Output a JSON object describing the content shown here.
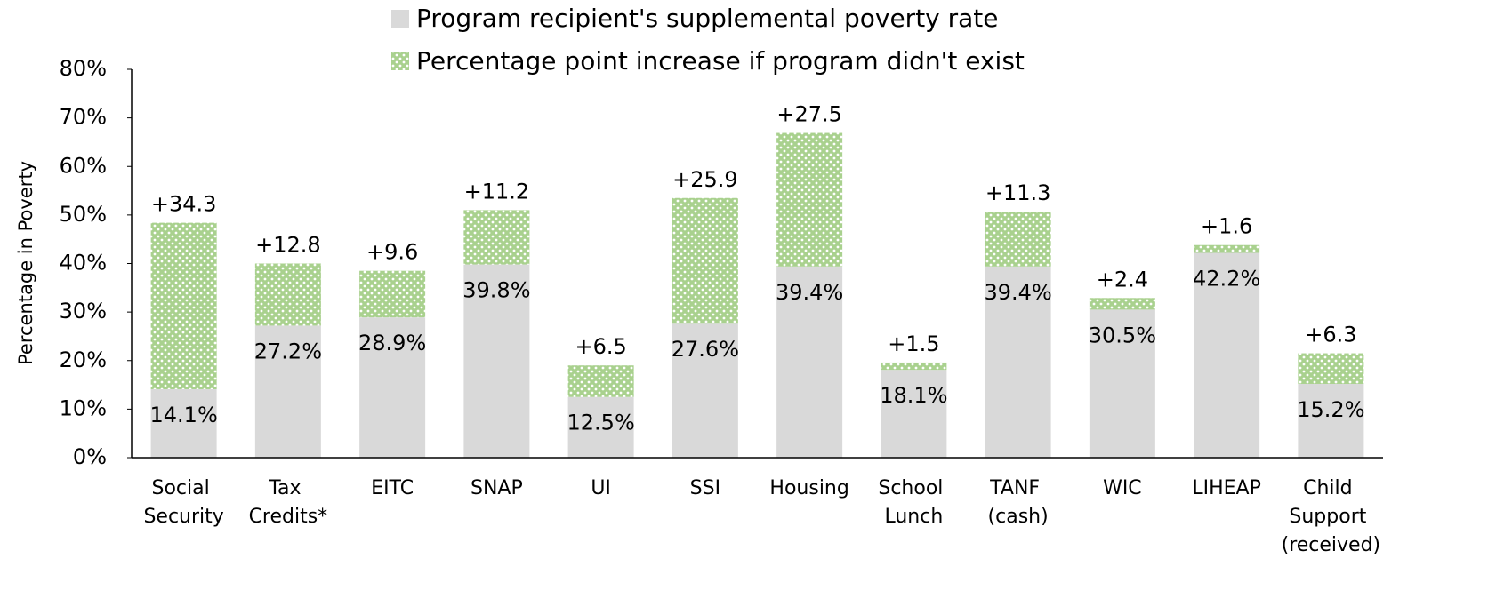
{
  "chart_data": {
    "type": "stacked_bar",
    "y_axis_label": "Percentage in Poverty",
    "categories": [
      "Social Security",
      "Tax Credits*",
      "EITC",
      "SNAP",
      "UI",
      "SSI",
      "Housing",
      "School Lunch",
      "TANF (cash)",
      "WIC",
      "LIHEAP",
      "Child Support (received)"
    ],
    "series": [
      {
        "name": "Program recipient's supplemental poverty rate",
        "color": "#d9d9d9",
        "values": [
          14.1,
          27.2,
          28.9,
          39.8,
          12.5,
          27.6,
          39.4,
          18.1,
          39.4,
          30.5,
          42.2,
          15.2
        ],
        "value_labels": [
          "14.1%",
          "27.2%",
          "28.9%",
          "39.8%",
          "12.5%",
          "27.6%",
          "39.4%",
          "18.1%",
          "39.4%",
          "30.5%",
          "42.2%",
          "15.2%"
        ]
      },
      {
        "name": "Percentage point increase if program didn't exist",
        "color": "#a9d18e",
        "pattern": "dots",
        "values": [
          34.3,
          12.8,
          9.6,
          11.2,
          6.5,
          25.9,
          27.5,
          1.5,
          11.3,
          2.4,
          1.6,
          6.3
        ],
        "value_labels": [
          "+34.3",
          "+12.8",
          "+9.6",
          "+11.2",
          "+6.5",
          "+25.9",
          "+27.5",
          "+1.5",
          "+11.3",
          "+2.4",
          "+1.6",
          "+6.3"
        ]
      }
    ],
    "ylim": [
      0,
      80
    ],
    "yticks": [
      {
        "value": 0,
        "label": "0%"
      },
      {
        "value": 10,
        "label": "10%"
      },
      {
        "value": 20,
        "label": "20%"
      },
      {
        "value": 30,
        "label": "30%"
      },
      {
        "value": 40,
        "label": "40%"
      },
      {
        "value": 50,
        "label": "50%"
      },
      {
        "value": 60,
        "label": "60%"
      },
      {
        "value": 70,
        "label": "70%"
      },
      {
        "value": 80,
        "label": "80%"
      }
    ],
    "grid": false
  }
}
